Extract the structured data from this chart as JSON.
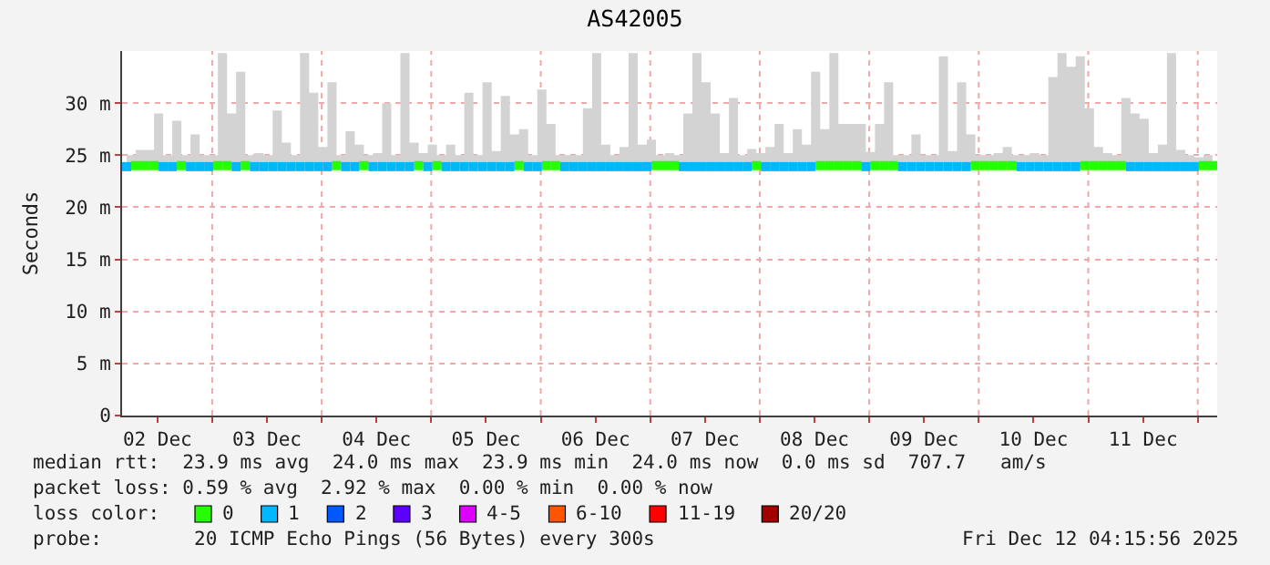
{
  "chart_data": {
    "type": "scatter",
    "title": "AS42005",
    "ylabel": "Seconds",
    "x": [
      "2025-12-02T05:15",
      "2025-12-02T07:15",
      "2025-12-02T09:15",
      "2025-12-02T11:15",
      "2025-12-02T13:15",
      "2025-12-02T15:15",
      "2025-12-02T17:15",
      "2025-12-02T19:15",
      "2025-12-02T21:15",
      "2025-12-02T23:15",
      "2025-12-03T01:15",
      "2025-12-03T03:15",
      "2025-12-03T05:15",
      "2025-12-03T07:15",
      "2025-12-03T09:15",
      "2025-12-03T11:15",
      "2025-12-03T13:15",
      "2025-12-03T15:15",
      "2025-12-03T17:15",
      "2025-12-03T19:15",
      "2025-12-03T21:15",
      "2025-12-03T23:15",
      "2025-12-04T01:15",
      "2025-12-04T03:15",
      "2025-12-04T05:15",
      "2025-12-04T07:15",
      "2025-12-04T09:15",
      "2025-12-04T11:15",
      "2025-12-04T13:15",
      "2025-12-04T15:15",
      "2025-12-04T17:15",
      "2025-12-04T19:15",
      "2025-12-04T21:15",
      "2025-12-04T23:15",
      "2025-12-05T01:15",
      "2025-12-05T03:15",
      "2025-12-05T05:15",
      "2025-12-05T07:15",
      "2025-12-05T09:15",
      "2025-12-05T11:15",
      "2025-12-05T13:15",
      "2025-12-05T15:15",
      "2025-12-05T17:15",
      "2025-12-05T19:15",
      "2025-12-05T21:15",
      "2025-12-05T23:15",
      "2025-12-06T01:15",
      "2025-12-06T03:15",
      "2025-12-06T05:15",
      "2025-12-06T07:15",
      "2025-12-06T09:15",
      "2025-12-06T11:15",
      "2025-12-06T13:15",
      "2025-12-06T15:15",
      "2025-12-06T17:15",
      "2025-12-06T19:15",
      "2025-12-06T21:15",
      "2025-12-06T23:15",
      "2025-12-07T01:15",
      "2025-12-07T03:15",
      "2025-12-07T05:15",
      "2025-12-07T07:15",
      "2025-12-07T09:15",
      "2025-12-07T11:15",
      "2025-12-07T13:15",
      "2025-12-07T15:15",
      "2025-12-07T17:15",
      "2025-12-07T19:15",
      "2025-12-07T21:15",
      "2025-12-07T23:15",
      "2025-12-08T01:15",
      "2025-12-08T03:15",
      "2025-12-08T05:15",
      "2025-12-08T07:15",
      "2025-12-08T09:15",
      "2025-12-08T11:15",
      "2025-12-08T13:15",
      "2025-12-08T15:15",
      "2025-12-08T17:15",
      "2025-12-08T19:15",
      "2025-12-08T21:15",
      "2025-12-08T23:15",
      "2025-12-09T01:15",
      "2025-12-09T03:15",
      "2025-12-09T05:15",
      "2025-12-09T07:15",
      "2025-12-09T09:15",
      "2025-12-09T11:15",
      "2025-12-09T13:15",
      "2025-12-09T15:15",
      "2025-12-09T17:15",
      "2025-12-09T19:15",
      "2025-12-09T21:15",
      "2025-12-09T23:15",
      "2025-12-10T01:15",
      "2025-12-10T03:15",
      "2025-12-10T05:15",
      "2025-12-10T07:15",
      "2025-12-10T09:15",
      "2025-12-10T11:15",
      "2025-12-10T13:15",
      "2025-12-10T15:15",
      "2025-12-10T17:15",
      "2025-12-10T19:15",
      "2025-12-10T21:15",
      "2025-12-10T23:15",
      "2025-12-11T01:15",
      "2025-12-11T03:15",
      "2025-12-11T05:15",
      "2025-12-11T07:15",
      "2025-12-11T09:15",
      "2025-12-11T11:15",
      "2025-12-11T13:15",
      "2025-12-11T15:15",
      "2025-12-11T17:15",
      "2025-12-11T19:15",
      "2025-12-11T21:15",
      "2025-12-11T23:15",
      "2025-12-12T01:15",
      "2025-12-12T03:15"
    ],
    "series": [
      {
        "name": "0",
        "color": "#26ff00",
        "values": [
          null,
          24.0,
          24.0,
          24.0,
          null,
          null,
          24.0,
          null,
          null,
          null,
          24.0,
          24.0,
          null,
          24.0,
          null,
          null,
          null,
          null,
          null,
          null,
          null,
          null,
          null,
          24.0,
          null,
          null,
          24.0,
          null,
          null,
          null,
          null,
          null,
          24.0,
          null,
          24.0,
          null,
          null,
          null,
          null,
          null,
          null,
          null,
          null,
          24.0,
          null,
          null,
          24.0,
          24.0,
          null,
          null,
          null,
          null,
          null,
          null,
          null,
          null,
          null,
          null,
          24.0,
          24.0,
          24.0,
          null,
          null,
          null,
          null,
          null,
          null,
          null,
          null,
          24.0,
          null,
          null,
          null,
          null,
          null,
          null,
          24.0,
          24.0,
          24.0,
          24.0,
          24.0,
          null,
          24.0,
          24.0,
          24.0,
          null,
          null,
          null,
          null,
          null,
          null,
          null,
          null,
          24.0,
          24.0,
          24.0,
          24.0,
          24.0,
          null,
          null,
          null,
          null,
          null,
          null,
          null,
          24.0,
          24.0,
          24.0,
          24.0,
          24.0,
          null,
          null,
          null,
          null,
          null,
          null,
          null,
          null,
          24.0,
          24.0
        ]
      },
      {
        "name": "1",
        "color": "#00b8ff",
        "values": [
          23.9,
          null,
          null,
          null,
          23.9,
          23.9,
          null,
          23.9,
          23.9,
          23.9,
          null,
          null,
          23.9,
          null,
          23.9,
          23.9,
          23.9,
          23.9,
          23.9,
          23.9,
          23.9,
          23.9,
          23.9,
          null,
          23.9,
          23.9,
          null,
          23.9,
          23.9,
          23.9,
          23.9,
          23.9,
          null,
          23.9,
          null,
          23.9,
          23.9,
          23.9,
          23.9,
          23.9,
          23.9,
          23.9,
          23.9,
          null,
          23.9,
          23.9,
          null,
          null,
          23.9,
          23.9,
          23.9,
          23.9,
          23.9,
          23.9,
          23.9,
          23.9,
          23.9,
          23.9,
          null,
          null,
          null,
          23.9,
          23.9,
          23.9,
          23.9,
          23.9,
          23.9,
          23.9,
          23.9,
          null,
          23.9,
          23.9,
          23.9,
          23.9,
          23.9,
          23.9,
          null,
          null,
          null,
          null,
          null,
          23.9,
          null,
          null,
          null,
          23.9,
          23.9,
          23.9,
          23.9,
          23.9,
          23.9,
          23.9,
          23.9,
          null,
          null,
          null,
          null,
          null,
          23.9,
          23.9,
          23.9,
          23.9,
          23.9,
          23.9,
          23.9,
          null,
          null,
          null,
          null,
          null,
          23.9,
          23.9,
          23.9,
          23.9,
          23.9,
          23.9,
          23.9,
          23.9,
          null,
          null
        ],
        "lower": [
          23.7,
          23.7,
          23.7,
          23.7,
          23.7,
          23.7,
          23.7,
          23.7,
          23.7,
          23.7,
          23.7,
          23.7,
          23.7,
          23.7,
          23.7,
          23.7,
          23.7,
          23.7,
          23.7,
          23.7,
          23.7,
          23.7,
          23.7,
          23.7,
          23.7,
          23.7,
          23.7,
          23.7,
          23.7,
          23.7,
          23.7,
          23.7,
          23.7,
          23.7,
          23.7,
          23.7,
          23.7,
          23.7,
          23.7,
          23.7,
          23.7,
          23.7,
          23.7,
          23.7,
          23.7,
          23.7,
          23.7,
          23.7,
          23.7,
          23.7,
          23.7,
          23.7,
          23.7,
          23.7,
          23.7,
          23.7,
          23.7,
          23.7,
          23.7,
          23.7,
          23.7,
          23.7,
          23.7,
          23.7,
          23.7,
          23.7,
          23.7,
          23.7,
          23.7,
          23.7,
          23.7,
          23.7,
          23.7,
          23.7,
          23.7,
          23.7,
          23.7,
          23.7,
          23.7,
          23.7,
          23.7,
          23.7,
          23.7,
          23.7,
          23.7,
          23.7,
          23.7,
          23.7,
          23.7,
          23.7,
          23.7,
          23.7,
          23.7,
          23.7,
          23.7,
          23.7,
          23.7,
          23.7,
          23.7,
          23.7,
          23.7,
          23.7,
          23.7,
          23.7,
          23.7,
          23.7,
          23.7,
          23.7,
          23.7,
          23.7,
          23.7,
          23.7,
          23.7,
          23.7,
          23.7,
          23.7,
          23.7,
          23.7,
          23.7,
          23.7
        ],
        "upper": [
          25.0,
          25.5,
          25.5,
          29.0,
          25.0,
          28.3,
          25.0,
          27.0,
          25.0,
          25.0,
          34.8,
          29.0,
          33.0,
          25.0,
          25.2,
          25.0,
          29.3,
          26.2,
          25.0,
          34.8,
          31.0,
          25.8,
          32.0,
          25.0,
          27.3,
          26.0,
          25.0,
          25.2,
          30.0,
          25.0,
          34.8,
          26.2,
          25.2,
          26.0,
          25.0,
          26.0,
          25.0,
          31.0,
          25.0,
          32.0,
          25.4,
          30.7,
          27.0,
          27.5,
          25.0,
          31.3,
          28.0,
          25.0,
          25.0,
          25.0,
          29.5,
          34.8,
          26.0,
          25.0,
          25.8,
          34.8,
          26.0,
          26.5,
          25.0,
          25.2,
          25.0,
          29.0,
          34.8,
          32.0,
          29.0,
          25.2,
          30.5,
          25.0,
          25.6,
          25.2,
          25.8,
          28.0,
          25.2,
          27.5,
          26.0,
          33.0,
          27.5,
          34.8,
          28.0,
          28.0,
          28.0,
          25.3,
          28.0,
          32.0,
          25.0,
          25.0,
          27.0,
          25.0,
          25.0,
          34.5,
          25.4,
          32.0,
          27.0,
          25.0,
          25.0,
          25.2,
          25.8,
          25.0,
          25.0,
          25.2,
          25.0,
          32.5,
          34.8,
          33.5,
          34.5,
          29.5,
          25.8,
          25.2,
          25.0,
          30.5,
          29.0,
          28.5,
          25.2,
          26.0,
          34.8,
          25.5,
          25.0,
          24.8,
          25.0,
          24.6
        ]
      },
      {
        "name": "2",
        "color": "#0059ff",
        "values": [
          null,
          null,
          null,
          null,
          null,
          null,
          null,
          null,
          null,
          null,
          null,
          null,
          null,
          null,
          null,
          null,
          null,
          null,
          null,
          null,
          null,
          null,
          null,
          null,
          null,
          null,
          null,
          null,
          null,
          null,
          null,
          null,
          null,
          null,
          null,
          null,
          null,
          null,
          null,
          null,
          null,
          null,
          null,
          null,
          null,
          null,
          null,
          null,
          null,
          null,
          null,
          null,
          null,
          null,
          null,
          null,
          null,
          null,
          null,
          null,
          null,
          null,
          null,
          null,
          null,
          null,
          null,
          null,
          null,
          null,
          null,
          null,
          null,
          null,
          null,
          null,
          null,
          null,
          null,
          null,
          null,
          null,
          null,
          null,
          null,
          null,
          null,
          null,
          null,
          null,
          null,
          null,
          null,
          null,
          null,
          null,
          null,
          null,
          null,
          null,
          null,
          null,
          null,
          null,
          null,
          null,
          null,
          null,
          null,
          null,
          null,
          null,
          null,
          null,
          null,
          null,
          null,
          null,
          null,
          null
        ]
      },
      {
        "name": "3",
        "color": "#5e00ff",
        "values": [
          null,
          null,
          null,
          null,
          null,
          null,
          null,
          null,
          null,
          null,
          null,
          null,
          null,
          null,
          null,
          null,
          null,
          null,
          null,
          null,
          null,
          null,
          null,
          null,
          null,
          null,
          null,
          null,
          null,
          null,
          null,
          null,
          null,
          null,
          null,
          null,
          null,
          null,
          null,
          null,
          null,
          null,
          null,
          null,
          null,
          null,
          null,
          null,
          null,
          null,
          null,
          null,
          null,
          null,
          null,
          null,
          null,
          null,
          null,
          null,
          null,
          null,
          null,
          null,
          null,
          null,
          null,
          null,
          null,
          null,
          null,
          null,
          null,
          null,
          null,
          null,
          null,
          null,
          null,
          null,
          null,
          null,
          null,
          null,
          null,
          null,
          null,
          null,
          null,
          null,
          null,
          null,
          null,
          null,
          null,
          null,
          null,
          null,
          null,
          null,
          null,
          null,
          null,
          null,
          null,
          null,
          null,
          null,
          null,
          null,
          null,
          null,
          null,
          null,
          null,
          null,
          null,
          null,
          null,
          null
        ]
      },
      {
        "name": "4-5",
        "color": "#dd00ff",
        "values": [
          null,
          null,
          null,
          null,
          null,
          null,
          null,
          null,
          null,
          null,
          null,
          null,
          null,
          null,
          null,
          null,
          null,
          null,
          null,
          null,
          null,
          null,
          null,
          null,
          null,
          null,
          null,
          null,
          null,
          null,
          null,
          null,
          null,
          null,
          null,
          null,
          null,
          null,
          null,
          null,
          null,
          null,
          null,
          null,
          null,
          null,
          null,
          null,
          null,
          null,
          null,
          null,
          null,
          null,
          null,
          null,
          null,
          null,
          null,
          null,
          null,
          null,
          null,
          null,
          null,
          null,
          null,
          null,
          null,
          null,
          null,
          null,
          null,
          null,
          null,
          null,
          null,
          null,
          null,
          null,
          null,
          null,
          null,
          null,
          null,
          null,
          null,
          null,
          null,
          null,
          null,
          null,
          null,
          null,
          null,
          null,
          null,
          null,
          null,
          null,
          null,
          null,
          null,
          null,
          null,
          null,
          null,
          null,
          null,
          null,
          null,
          null,
          null,
          null,
          null,
          null,
          null,
          null,
          null,
          null
        ]
      },
      {
        "name": "6-10",
        "color": "#ff5500",
        "values": [
          null,
          null,
          null,
          null,
          null,
          null,
          null,
          null,
          null,
          null,
          null,
          null,
          null,
          null,
          null,
          null,
          null,
          null,
          null,
          null,
          null,
          null,
          null,
          null,
          null,
          null,
          null,
          null,
          null,
          null,
          null,
          null,
          null,
          null,
          null,
          null,
          null,
          null,
          null,
          null,
          null,
          null,
          null,
          null,
          null,
          null,
          null,
          null,
          null,
          null,
          null,
          null,
          null,
          null,
          null,
          null,
          null,
          null,
          null,
          null,
          null,
          null,
          null,
          null,
          null,
          null,
          null,
          null,
          null,
          null,
          null,
          null,
          null,
          null,
          null,
          null,
          null,
          null,
          null,
          null,
          null,
          null,
          null,
          null,
          null,
          null,
          null,
          null,
          null,
          null,
          null,
          null,
          null,
          null,
          null,
          null,
          null,
          null,
          null,
          null,
          null,
          null,
          null,
          null,
          null,
          null,
          null,
          null,
          null,
          null,
          null,
          null,
          null,
          null,
          null,
          null,
          null,
          null,
          null,
          null
        ]
      },
      {
        "name": "11-19",
        "color": "#ff0000",
        "values": [
          null,
          null,
          null,
          null,
          null,
          null,
          null,
          null,
          null,
          null,
          null,
          null,
          null,
          null,
          null,
          null,
          null,
          null,
          null,
          null,
          null,
          null,
          null,
          null,
          null,
          null,
          null,
          null,
          null,
          null,
          null,
          null,
          null,
          null,
          null,
          null,
          null,
          null,
          null,
          null,
          null,
          null,
          null,
          null,
          null,
          null,
          null,
          null,
          null,
          null,
          null,
          null,
          null,
          null,
          null,
          null,
          null,
          null,
          null,
          null,
          null,
          null,
          null,
          null,
          null,
          null,
          null,
          null,
          null,
          null,
          null,
          null,
          null,
          null,
          null,
          null,
          null,
          null,
          null,
          null,
          null,
          null,
          null,
          null,
          null,
          null,
          null,
          null,
          null,
          null,
          null,
          null,
          null,
          null,
          null,
          null,
          null,
          null,
          null,
          null,
          null,
          null,
          null,
          null,
          null,
          null,
          null,
          null,
          null,
          null,
          null,
          null,
          null,
          null,
          null,
          null,
          null,
          null,
          null,
          null
        ]
      },
      {
        "name": "20/20",
        "color": "#a10000",
        "values": [
          null,
          null,
          null,
          null,
          null,
          null,
          null,
          null,
          null,
          null,
          null,
          null,
          null,
          null,
          null,
          null,
          null,
          null,
          null,
          null,
          null,
          null,
          null,
          null,
          null,
          null,
          null,
          null,
          null,
          null,
          null,
          null,
          null,
          null,
          null,
          null,
          null,
          null,
          null,
          null,
          null,
          null,
          null,
          null,
          null,
          null,
          null,
          null,
          null,
          null,
          null,
          null,
          null,
          null,
          null,
          null,
          null,
          null,
          null,
          null,
          null,
          null,
          null,
          null,
          null,
          null,
          null,
          null,
          null,
          null,
          null,
          null,
          null,
          null,
          null,
          null,
          null,
          null,
          null,
          null,
          null,
          null,
          null,
          null,
          null,
          null,
          null,
          null,
          null,
          null,
          null,
          null,
          null,
          null,
          null,
          null,
          null,
          null,
          null,
          null,
          null,
          null,
          null,
          null,
          null,
          null,
          null,
          null,
          null,
          null,
          null,
          null,
          null,
          null,
          null,
          null,
          null,
          null,
          null,
          null
        ]
      }
    ],
    "legend_title": "loss color:",
    "legend": "bottom",
    "marker": "square",
    "grid": true,
    "xlim": [
      "2025-12-02T04:15",
      "2025-12-12T04:15"
    ],
    "xticks": [
      {
        "value": "2025-12-02T12:00",
        "label": "02 Dec"
      },
      {
        "value": "2025-12-03T00:00",
        "label": null
      },
      {
        "value": "2025-12-03T12:00",
        "label": "03 Dec"
      },
      {
        "value": "2025-12-04T00:00",
        "label": null
      },
      {
        "value": "2025-12-04T12:00",
        "label": "04 Dec"
      },
      {
        "value": "2025-12-05T00:00",
        "label": null
      },
      {
        "value": "2025-12-05T12:00",
        "label": "05 Dec"
      },
      {
        "value": "2025-12-06T00:00",
        "label": null
      },
      {
        "value": "2025-12-06T12:00",
        "label": "06 Dec"
      },
      {
        "value": "2025-12-07T00:00",
        "label": null
      },
      {
        "value": "2025-12-07T12:00",
        "label": "07 Dec"
      },
      {
        "value": "2025-12-08T00:00",
        "label": null
      },
      {
        "value": "2025-12-08T12:00",
        "label": "08 Dec"
      },
      {
        "value": "2025-12-09T00:00",
        "label": null
      },
      {
        "value": "2025-12-09T12:00",
        "label": "09 Dec"
      },
      {
        "value": "2025-12-10T00:00",
        "label": null
      },
      {
        "value": "2025-12-10T12:00",
        "label": "10 Dec"
      },
      {
        "value": "2025-12-11T00:00",
        "label": null
      },
      {
        "value": "2025-12-11T12:00",
        "label": "11 Dec"
      },
      {
        "value": "2025-12-12T00:00",
        "label": null
      }
    ],
    "ylim": [
      0,
      35
    ],
    "yticks": [
      0,
      {
        "value": 5,
        "label": "5 m"
      },
      {
        "value": 10,
        "label": "10 m"
      },
      {
        "value": 15,
        "label": "15 m"
      },
      {
        "value": 20,
        "label": "20 m"
      },
      {
        "value": 25,
        "label": "25 m"
      },
      {
        "value": 30,
        "label": "30 m"
      }
    ],
    "annotations": [
      "median rtt:  23.9 ms avg  24.0 ms max  23.9 ms min  24.0 ms now  0.0 ms sd  707.7   am/s",
      "packet loss: 0.59 % avg  2.92 % max  0.00 % min  0.00 % now",
      "probe:        20 ICMP Echo Pings (56 Bytes) every 300s",
      "Fri Dec 12 04:15:56 2025"
    ]
  }
}
